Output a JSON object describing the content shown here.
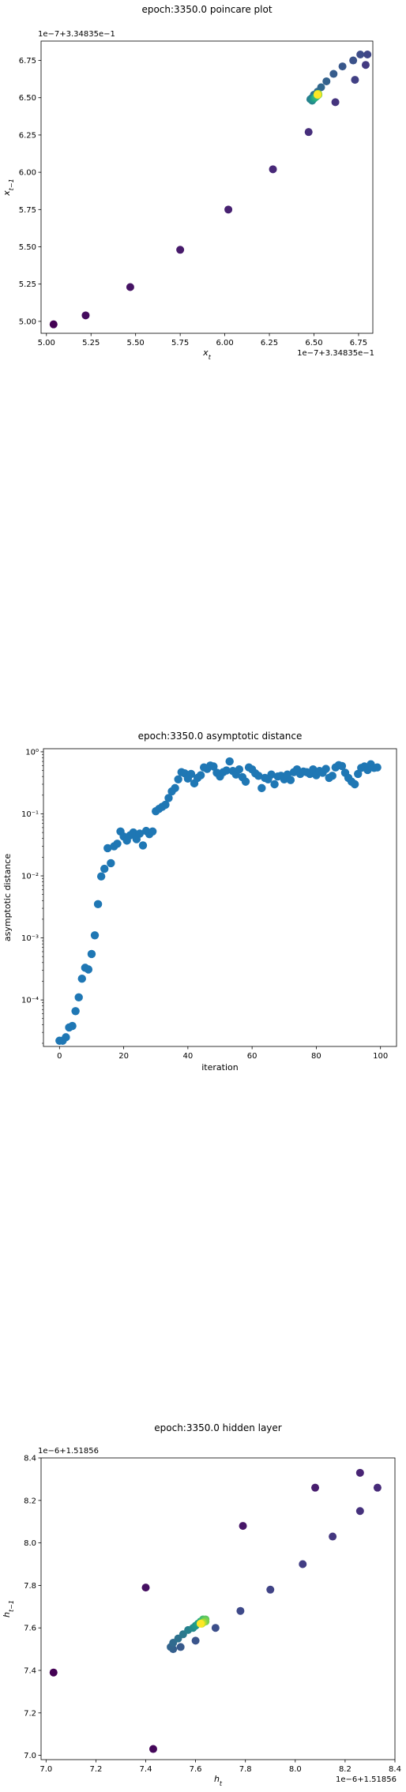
{
  "chart_data": [
    {
      "type": "scatter",
      "title": "epoch:3350.0 poincare plot",
      "xlabel": "x_t",
      "ylabel": "x_{t-1}",
      "x_offset_label": "1e−7+3.34835e−1",
      "y_offset_label": "1e−7+3.34835e−1",
      "xlim": [
        4.97,
        6.83
      ],
      "ylim": [
        4.92,
        6.88
      ],
      "x_ticks": [
        5.0,
        5.25,
        5.5,
        5.75,
        6.0,
        6.25,
        6.5,
        6.75
      ],
      "x_tick_labels": [
        "5.00",
        "5.25",
        "5.50",
        "5.75",
        "6.00",
        "6.25",
        "6.50",
        "6.75"
      ],
      "y_ticks": [
        5.0,
        5.25,
        5.5,
        5.75,
        6.0,
        6.25,
        6.5,
        6.75
      ],
      "y_tick_labels": [
        "5.00",
        "5.25",
        "5.50",
        "5.75",
        "6.00",
        "6.25",
        "6.50",
        "6.75"
      ],
      "colormap": "viridis",
      "points": [
        {
          "x": 5.04,
          "y": 4.98,
          "c": 0.0
        },
        {
          "x": 5.22,
          "y": 5.04,
          "c": 0.03
        },
        {
          "x": 5.47,
          "y": 5.23,
          "c": 0.05
        },
        {
          "x": 5.75,
          "y": 5.48,
          "c": 0.07
        },
        {
          "x": 6.02,
          "y": 5.75,
          "c": 0.09
        },
        {
          "x": 6.27,
          "y": 6.02,
          "c": 0.11
        },
        {
          "x": 6.47,
          "y": 6.27,
          "c": 0.13
        },
        {
          "x": 6.62,
          "y": 6.47,
          "c": 0.15
        },
        {
          "x": 6.79,
          "y": 6.72,
          "c": 0.17
        },
        {
          "x": 6.73,
          "y": 6.62,
          "c": 0.19
        },
        {
          "x": 6.8,
          "y": 6.79,
          "c": 0.21
        },
        {
          "x": 6.76,
          "y": 6.79,
          "c": 0.23
        },
        {
          "x": 6.72,
          "y": 6.75,
          "c": 0.25
        },
        {
          "x": 6.66,
          "y": 6.71,
          "c": 0.27
        },
        {
          "x": 6.61,
          "y": 6.66,
          "c": 0.29
        },
        {
          "x": 6.57,
          "y": 6.61,
          "c": 0.31
        },
        {
          "x": 6.54,
          "y": 6.57,
          "c": 0.33
        },
        {
          "x": 6.52,
          "y": 6.54,
          "c": 0.35
        },
        {
          "x": 6.5,
          "y": 6.52,
          "c": 0.37
        },
        {
          "x": 6.49,
          "y": 6.5,
          "c": 0.4
        },
        {
          "x": 6.48,
          "y": 6.49,
          "c": 0.43
        },
        {
          "x": 6.49,
          "y": 6.48,
          "c": 0.46
        },
        {
          "x": 6.495,
          "y": 6.49,
          "c": 0.5
        },
        {
          "x": 6.5,
          "y": 6.495,
          "c": 0.54
        },
        {
          "x": 6.505,
          "y": 6.5,
          "c": 0.58
        },
        {
          "x": 6.51,
          "y": 6.505,
          "c": 0.62
        },
        {
          "x": 6.515,
          "y": 6.51,
          "c": 0.66
        },
        {
          "x": 6.52,
          "y": 6.515,
          "c": 0.7
        },
        {
          "x": 6.52,
          "y": 6.52,
          "c": 0.75
        },
        {
          "x": 6.525,
          "y": 6.52,
          "c": 0.8
        },
        {
          "x": 6.525,
          "y": 6.525,
          "c": 0.85
        },
        {
          "x": 6.52,
          "y": 6.525,
          "c": 0.9
        },
        {
          "x": 6.52,
          "y": 6.52,
          "c": 1.0
        }
      ]
    },
    {
      "type": "scatter",
      "title": "epoch:3350.0 asymptotic distance",
      "xlabel": "iteration",
      "ylabel": "asymptotic distance",
      "yscale": "log",
      "xlim": [
        -5,
        105
      ],
      "ylim_log10": [
        -4.75,
        0.05
      ],
      "x_ticks": [
        0,
        20,
        40,
        60,
        80,
        100
      ],
      "x_tick_labels": [
        "0",
        "20",
        "40",
        "60",
        "80",
        "100"
      ],
      "y_ticks_log10": [
        -4,
        -3,
        -2,
        -1,
        0
      ],
      "y_tick_labels": [
        "10⁻⁴",
        "10⁻³",
        "10⁻²",
        "10⁻¹",
        "10⁰"
      ],
      "marker_color": "#1f77b4",
      "x": [
        0,
        1,
        2,
        3,
        4,
        5,
        6,
        7,
        8,
        9,
        10,
        11,
        12,
        13,
        14,
        15,
        16,
        17,
        18,
        19,
        20,
        21,
        22,
        23,
        24,
        25,
        26,
        27,
        28,
        29,
        30,
        31,
        32,
        33,
        34,
        35,
        36,
        37,
        38,
        39,
        40,
        41,
        42,
        43,
        44,
        45,
        46,
        47,
        48,
        49,
        50,
        51,
        52,
        53,
        54,
        55,
        56,
        57,
        58,
        59,
        60,
        61,
        62,
        63,
        64,
        65,
        66,
        67,
        68,
        69,
        70,
        71,
        72,
        73,
        74,
        75,
        76,
        77,
        78,
        79,
        80,
        81,
        82,
        83,
        84,
        85,
        86,
        87,
        88,
        89,
        90,
        91,
        92,
        93,
        94,
        95,
        96,
        97,
        98,
        99
      ],
      "y": [
        2.2e-05,
        2.2e-05,
        2.5e-05,
        3.6e-05,
        3.8e-05,
        6.6e-05,
        0.00011,
        0.00022,
        0.00033,
        0.00031,
        0.00055,
        0.0011,
        0.0035,
        0.0098,
        0.013,
        0.028,
        0.016,
        0.03,
        0.033,
        0.052,
        0.043,
        0.037,
        0.045,
        0.05,
        0.039,
        0.048,
        0.031,
        0.053,
        0.047,
        0.052,
        0.11,
        0.12,
        0.13,
        0.14,
        0.18,
        0.23,
        0.26,
        0.36,
        0.47,
        0.45,
        0.37,
        0.44,
        0.31,
        0.38,
        0.42,
        0.56,
        0.53,
        0.6,
        0.58,
        0.46,
        0.4,
        0.47,
        0.5,
        0.7,
        0.49,
        0.43,
        0.52,
        0.39,
        0.33,
        0.56,
        0.52,
        0.45,
        0.41,
        0.26,
        0.38,
        0.36,
        0.43,
        0.3,
        0.4,
        0.41,
        0.36,
        0.43,
        0.35,
        0.47,
        0.52,
        0.44,
        0.48,
        0.47,
        0.44,
        0.52,
        0.42,
        0.49,
        0.46,
        0.53,
        0.38,
        0.41,
        0.56,
        0.61,
        0.59,
        0.46,
        0.38,
        0.33,
        0.3,
        0.44,
        0.55,
        0.58,
        0.51,
        0.63,
        0.55,
        0.56
      ]
    },
    {
      "type": "scatter",
      "title": "epoch:3350.0 hidden layer",
      "xlabel": "h_t",
      "ylabel": "h_{t-1}",
      "x_offset_label": "1e−6+1.51856",
      "y_offset_label": "1e−6+1.51856",
      "xlim": [
        6.98,
        8.4
      ],
      "ylim": [
        6.98,
        8.4
      ],
      "x_ticks": [
        7.0,
        7.2,
        7.4,
        7.6,
        7.8,
        8.0,
        8.2,
        8.4
      ],
      "x_tick_labels": [
        "7.0",
        "7.2",
        "7.4",
        "7.6",
        "7.8",
        "8.0",
        "8.2",
        "8.4"
      ],
      "y_ticks": [
        7.0,
        7.2,
        7.4,
        7.6,
        7.8,
        8.0,
        8.2,
        8.4
      ],
      "y_tick_labels": [
        "7.0",
        "7.2",
        "7.4",
        "7.6",
        "7.8",
        "8.0",
        "8.2",
        "8.4"
      ],
      "colormap": "viridis",
      "points": [
        {
          "x": 7.03,
          "y": 7.39,
          "c": 0.0
        },
        {
          "x": 7.43,
          "y": 7.03,
          "c": 0.02
        },
        {
          "x": 7.4,
          "y": 7.79,
          "c": 0.04
        },
        {
          "x": 7.79,
          "y": 8.08,
          "c": 0.06
        },
        {
          "x": 8.08,
          "y": 8.26,
          "c": 0.08
        },
        {
          "x": 8.26,
          "y": 8.33,
          "c": 0.1
        },
        {
          "x": 8.33,
          "y": 8.26,
          "c": 0.12
        },
        {
          "x": 8.26,
          "y": 8.15,
          "c": 0.14
        },
        {
          "x": 8.15,
          "y": 8.03,
          "c": 0.16
        },
        {
          "x": 8.03,
          "y": 7.9,
          "c": 0.18
        },
        {
          "x": 7.9,
          "y": 7.78,
          "c": 0.2
        },
        {
          "x": 7.78,
          "y": 7.68,
          "c": 0.22
        },
        {
          "x": 7.68,
          "y": 7.6,
          "c": 0.24
        },
        {
          "x": 7.6,
          "y": 7.54,
          "c": 0.26
        },
        {
          "x": 7.54,
          "y": 7.51,
          "c": 0.28
        },
        {
          "x": 7.51,
          "y": 7.5,
          "c": 0.3
        },
        {
          "x": 7.5,
          "y": 7.51,
          "c": 0.32
        },
        {
          "x": 7.51,
          "y": 7.53,
          "c": 0.34
        },
        {
          "x": 7.53,
          "y": 7.55,
          "c": 0.37
        },
        {
          "x": 7.55,
          "y": 7.57,
          "c": 0.4
        },
        {
          "x": 7.57,
          "y": 7.59,
          "c": 0.44
        },
        {
          "x": 7.59,
          "y": 7.6,
          "c": 0.48
        },
        {
          "x": 7.6,
          "y": 7.61,
          "c": 0.52
        },
        {
          "x": 7.61,
          "y": 7.62,
          "c": 0.56
        },
        {
          "x": 7.62,
          "y": 7.63,
          "c": 0.6
        },
        {
          "x": 7.63,
          "y": 7.63,
          "c": 0.65
        },
        {
          "x": 7.63,
          "y": 7.64,
          "c": 0.7
        },
        {
          "x": 7.64,
          "y": 7.64,
          "c": 0.75
        },
        {
          "x": 7.64,
          "y": 7.63,
          "c": 0.8
        },
        {
          "x": 7.63,
          "y": 7.625,
          "c": 0.86
        },
        {
          "x": 7.625,
          "y": 7.62,
          "c": 0.92
        },
        {
          "x": 7.62,
          "y": 7.62,
          "c": 1.0
        }
      ]
    }
  ]
}
